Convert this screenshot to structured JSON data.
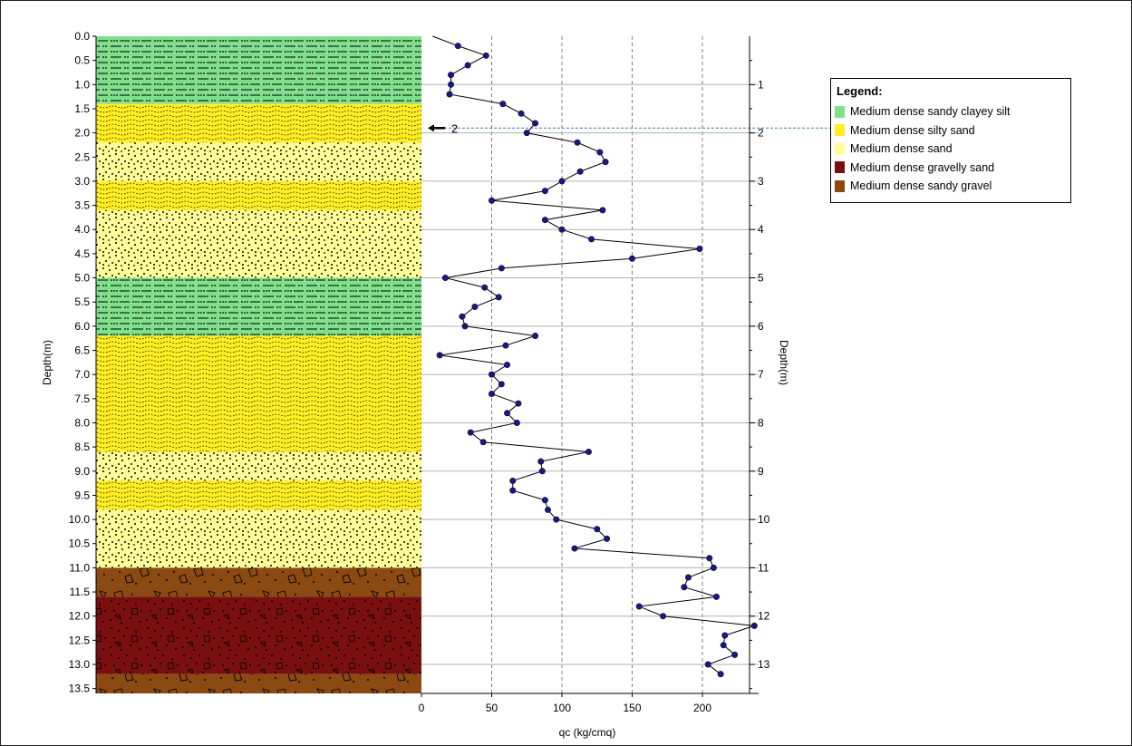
{
  "chart_data": {
    "type": "line",
    "xlabel": "qc (kg/cmq)",
    "ylabel": "Depth(m)",
    "y2label": "Depth(m)",
    "xlim": [
      0,
      240
    ],
    "ylim": [
      13.6,
      0
    ],
    "x_ticks": [
      "0",
      "50",
      "100",
      "150",
      "200"
    ],
    "y_ticks": [
      "0.0",
      "0.5",
      "1.0",
      "1.5",
      "2.0",
      "2.5",
      "3.0",
      "3.5",
      "4.0",
      "4.5",
      "5.0",
      "5.5",
      "6.0",
      "6.5",
      "7.0",
      "7.5",
      "8.0",
      "8.5",
      "9.0",
      "9.5",
      "10.0",
      "10.5",
      "11.0",
      "11.5",
      "12.0",
      "12.5",
      "13.0",
      "13.5"
    ],
    "y2_ticks": [
      "1",
      "2",
      "3",
      "4",
      "5",
      "6",
      "7",
      "8",
      "9",
      "10",
      "11",
      "12",
      "13"
    ],
    "grid": true,
    "marker_label": "2",
    "marker_depth": 1.9,
    "series": [
      {
        "values_qc": [
          26,
          46,
          33,
          21,
          21,
          20,
          58,
          71,
          81,
          75,
          111,
          127,
          131,
          113,
          100,
          88,
          50,
          129,
          88,
          100,
          121,
          198,
          150,
          57,
          17,
          45,
          55,
          38,
          29,
          31,
          81,
          60,
          13,
          61,
          50,
          57,
          50,
          69,
          61,
          68,
          35,
          44,
          119,
          85,
          86,
          65,
          65,
          88,
          90,
          96,
          125,
          132,
          109,
          205,
          208,
          190,
          187,
          210,
          155,
          172,
          237,
          216,
          215,
          223,
          204,
          213
        ],
        "values_depth": [
          0.2,
          0.4,
          0.6,
          0.8,
          1.0,
          1.2,
          1.4,
          1.6,
          1.8,
          2.0,
          2.2,
          2.4,
          2.6,
          2.8,
          3.0,
          3.2,
          3.4,
          3.6,
          3.8,
          4.0,
          4.2,
          4.4,
          4.6,
          4.8,
          5.0,
          5.2,
          5.4,
          5.6,
          5.8,
          6.0,
          6.2,
          6.4,
          6.6,
          6.8,
          7.0,
          7.2,
          7.4,
          7.6,
          7.8,
          8.0,
          8.2,
          8.4,
          8.6,
          8.8,
          9.0,
          9.2,
          9.4,
          9.6,
          9.8,
          10.0,
          10.2,
          10.4,
          10.6,
          10.8,
          11.0,
          11.2,
          11.4,
          11.6,
          11.8,
          12.0,
          12.2,
          12.4,
          12.6,
          12.8,
          13.0,
          13.2
        ]
      }
    ],
    "layers": [
      {
        "from": 0.0,
        "to": 1.4,
        "name": "Medium dense sandy clayey silt",
        "color": "#80e08c",
        "pattern": "silt"
      },
      {
        "from": 1.4,
        "to": 2.2,
        "name": "Medium dense silty sand",
        "color": "#ffee22",
        "pattern": "silty-sand"
      },
      {
        "from": 2.2,
        "to": 3.0,
        "name": "Medium dense sand",
        "color": "#ffff99",
        "pattern": "sand"
      },
      {
        "from": 3.0,
        "to": 3.6,
        "name": "Medium dense silty sand",
        "color": "#ffee22",
        "pattern": "silty-sand"
      },
      {
        "from": 3.6,
        "to": 5.0,
        "name": "Medium dense sand",
        "color": "#ffff99",
        "pattern": "sand"
      },
      {
        "from": 5.0,
        "to": 6.2,
        "name": "Medium dense sandy clayey silt",
        "color": "#80e08c",
        "pattern": "silt"
      },
      {
        "from": 6.2,
        "to": 8.6,
        "name": "Medium dense silty sand",
        "color": "#ffee22",
        "pattern": "silty-sand"
      },
      {
        "from": 8.6,
        "to": 9.2,
        "name": "Medium dense sand",
        "color": "#ffff99",
        "pattern": "sand"
      },
      {
        "from": 9.2,
        "to": 9.8,
        "name": "Medium dense silty sand",
        "color": "#ffee22",
        "pattern": "silty-sand"
      },
      {
        "from": 9.8,
        "to": 11.0,
        "name": "Medium dense sand",
        "color": "#ffff99",
        "pattern": "sand"
      },
      {
        "from": 11.0,
        "to": 11.6,
        "name": "Medium dense sandy gravel",
        "color": "#8a4a12",
        "pattern": "gravel"
      },
      {
        "from": 11.6,
        "to": 13.2,
        "name": "Medium dense gravelly sand",
        "color": "#7a0f0f",
        "pattern": "gravelly-sand"
      },
      {
        "from": 13.2,
        "to": 13.6,
        "name": "Medium dense sandy gravel",
        "color": "#8a4a12",
        "pattern": "gravel"
      }
    ]
  },
  "legend": {
    "title": "Legend:",
    "items": [
      {
        "label": "Medium dense sandy clayey silt",
        "color": "#80e08c"
      },
      {
        "label": "Medium dense silty sand",
        "color": "#ffee22"
      },
      {
        "label": "Medium dense sand",
        "color": "#ffff99"
      },
      {
        "label": "Medium dense gravelly sand",
        "color": "#7a0f0f"
      },
      {
        "label": "Medium dense sandy gravel",
        "color": "#8a4a12"
      }
    ]
  },
  "colors": {
    "series_line": "#000000",
    "marker_fill": "#1a1a7a",
    "grid": "#808080",
    "marker_line": "#3a7abf"
  }
}
